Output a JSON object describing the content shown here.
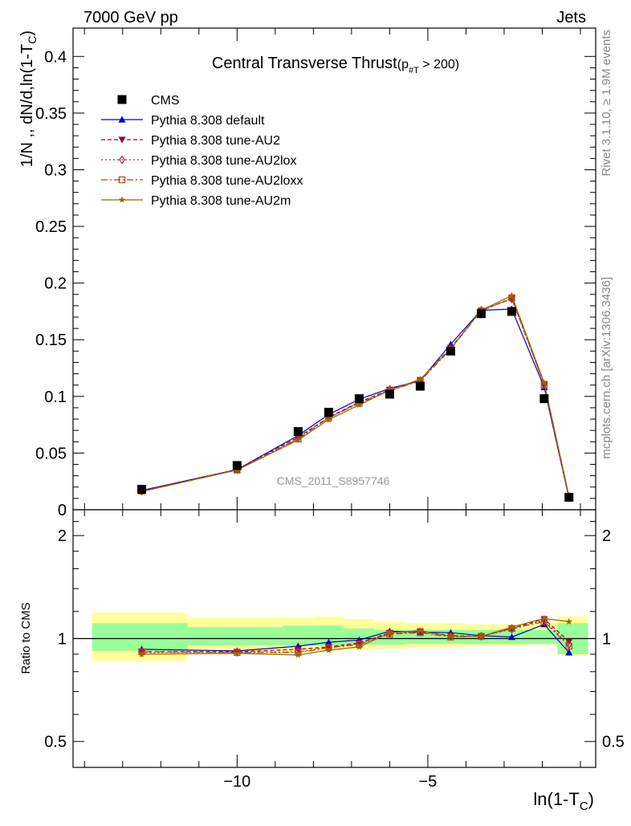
{
  "header": {
    "left": "7000 GeV pp",
    "right": "Jets"
  },
  "side_labels": {
    "rivet": "Rivet 3.1.10, ≥ 1.9M events",
    "mcplots": "mcplots.cern.ch [arXiv:1306.3436]"
  },
  "watermark": "CMS_2011_S8957746",
  "title": {
    "main": "Central Transverse Thrust",
    "paren_open": "(p",
    "sub": "#T",
    "rest": " > 200)"
  },
  "ylabel_main": {
    "prefix": "1/N ,, dN/d,ln(1-T",
    "sub": "C",
    "suffix": ")"
  },
  "ylabel_ratio": "Ratio to CMS",
  "xlabel": {
    "prefix": "ln(1-T",
    "sub": "C",
    "suffix": ")"
  },
  "colors": {
    "cms": "#000000",
    "default": "#0000cc",
    "au2": "#990033",
    "au2lox": "#aa2244",
    "au2loxx": "#bb4411",
    "au2m": "#996600",
    "band_inner": "#99ff99",
    "band_outer": "#ffff99"
  },
  "chart_data": [
    {
      "type": "line",
      "panel": "main",
      "xlim": [
        -14.3,
        -0.6
      ],
      "ylim": [
        0,
        0.425
      ],
      "yticks": [
        0,
        0.05,
        0.1,
        0.15,
        0.2,
        0.25,
        0.3,
        0.35,
        0.4
      ],
      "ytick_labels": [
        "0",
        "0.05",
        "0.1",
        "0.15",
        "0.2",
        "0.25",
        "0.3",
        "0.35",
        "0.4"
      ],
      "legend_position": "top-left",
      "x": [
        -12.5,
        -10.0,
        -8.4,
        -7.6,
        -6.8,
        -6.0,
        -5.2,
        -4.4,
        -3.6,
        -2.8,
        -1.95,
        -1.3
      ],
      "cms": {
        "name": "CMS",
        "values": [
          0.018,
          0.039,
          0.069,
          0.086,
          0.098,
          0.102,
          0.109,
          0.14,
          0.173,
          0.175,
          0.098,
          0.011
        ]
      },
      "series": [
        {
          "key": "default",
          "name": "Pythia 8.308 default",
          "marker": "triangle-up",
          "dash": "",
          "values": [
            0.017,
            0.0355,
            0.0655,
            0.084,
            0.0975,
            0.107,
            0.114,
            0.146,
            0.176,
            0.177,
            0.108,
            0.0105
          ]
        },
        {
          "key": "au2",
          "name": "Pythia 8.308 tune-AU2",
          "marker": "triangle-down",
          "dash": "5,3",
          "values": [
            0.0165,
            0.0355,
            0.064,
            0.0815,
            0.095,
            0.106,
            0.1145,
            0.143,
            0.1755,
            0.1865,
            0.111,
            0.011
          ]
        },
        {
          "key": "au2lox",
          "name": "Pythia 8.308 tune-AU2lox",
          "marker": "diamond-open",
          "dash": "2,3",
          "values": [
            0.0163,
            0.0355,
            0.063,
            0.081,
            0.0945,
            0.1055,
            0.114,
            0.142,
            0.176,
            0.186,
            0.1105,
            0.0112
          ]
        },
        {
          "key": "au2loxx",
          "name": "Pythia 8.308 tune-AU2loxx",
          "marker": "square-open",
          "dash": "8,3,2,3",
          "values": [
            0.0165,
            0.035,
            0.0625,
            0.081,
            0.094,
            0.105,
            0.1135,
            0.1415,
            0.1755,
            0.187,
            0.11,
            0.011
          ]
        },
        {
          "key": "au2m",
          "name": "Pythia 8.308 tune-AU2m",
          "marker": "star",
          "dash": "",
          "values": [
            0.016,
            0.035,
            0.0615,
            0.0795,
            0.0925,
            0.1055,
            0.115,
            0.142,
            0.176,
            0.189,
            0.112,
            0.0123
          ]
        }
      ]
    },
    {
      "type": "line",
      "panel": "ratio",
      "ylabel": "Ratio to CMS",
      "xlim": [
        -14.3,
        -0.6
      ],
      "ylim": [
        0.42,
        2.38
      ],
      "log_y": true,
      "yticks": [
        0.5,
        1,
        2
      ],
      "ytick_labels": [
        "0.5",
        "1",
        "2"
      ],
      "xticks": [
        -10,
        -5
      ],
      "xtick_labels": [
        "−10",
        "−5"
      ],
      "x": [
        -12.5,
        -10.0,
        -8.4,
        -7.6,
        -6.8,
        -6.0,
        -5.2,
        -4.4,
        -3.6,
        -2.8,
        -1.95,
        -1.3
      ],
      "bands": {
        "bin_edges": [
          -13.8,
          -11.3,
          -8.8,
          -8.0,
          -7.2,
          -6.4,
          -5.6,
          -4.8,
          -4.0,
          -3.2,
          -2.4,
          -1.6,
          -0.8
        ],
        "inner_lo": [
          0.92,
          0.955,
          0.955,
          0.955,
          0.96,
          0.96,
          0.965,
          0.965,
          0.965,
          0.965,
          0.965,
          0.9
        ],
        "inner_hi": [
          1.11,
          1.08,
          1.09,
          1.09,
          1.07,
          1.06,
          1.06,
          1.06,
          1.06,
          1.06,
          1.06,
          1.11
        ],
        "outer_lo": [
          0.86,
          0.9,
          0.91,
          0.92,
          0.93,
          0.935,
          0.94,
          0.945,
          0.95,
          0.955,
          0.96,
          0.89
        ],
        "outer_hi": [
          1.19,
          1.15,
          1.15,
          1.16,
          1.14,
          1.12,
          1.11,
          1.11,
          1.1,
          1.1,
          1.12,
          1.16
        ]
      },
      "series": [
        {
          "key": "default",
          "values": [
            0.93,
            0.92,
            0.95,
            0.975,
            0.99,
            1.05,
            1.045,
            1.04,
            1.02,
            1.01,
            1.1,
            0.91
          ]
        },
        {
          "key": "au2",
          "values": [
            0.915,
            0.915,
            0.93,
            0.945,
            0.97,
            1.04,
            1.05,
            1.02,
            1.015,
            1.07,
            1.14,
            0.98
          ]
        },
        {
          "key": "au2lox",
          "values": [
            0.91,
            0.912,
            0.915,
            0.94,
            0.965,
            1.035,
            1.045,
            1.015,
            1.015,
            1.065,
            1.13,
            0.96
          ]
        },
        {
          "key": "au2loxx",
          "values": [
            0.915,
            0.91,
            0.91,
            0.94,
            0.96,
            1.03,
            1.04,
            1.01,
            1.015,
            1.07,
            1.12,
            0.95
          ]
        },
        {
          "key": "au2m",
          "values": [
            0.9,
            0.905,
            0.895,
            0.925,
            0.945,
            1.04,
            1.055,
            1.015,
            1.015,
            1.08,
            1.145,
            1.12
          ]
        }
      ]
    }
  ]
}
